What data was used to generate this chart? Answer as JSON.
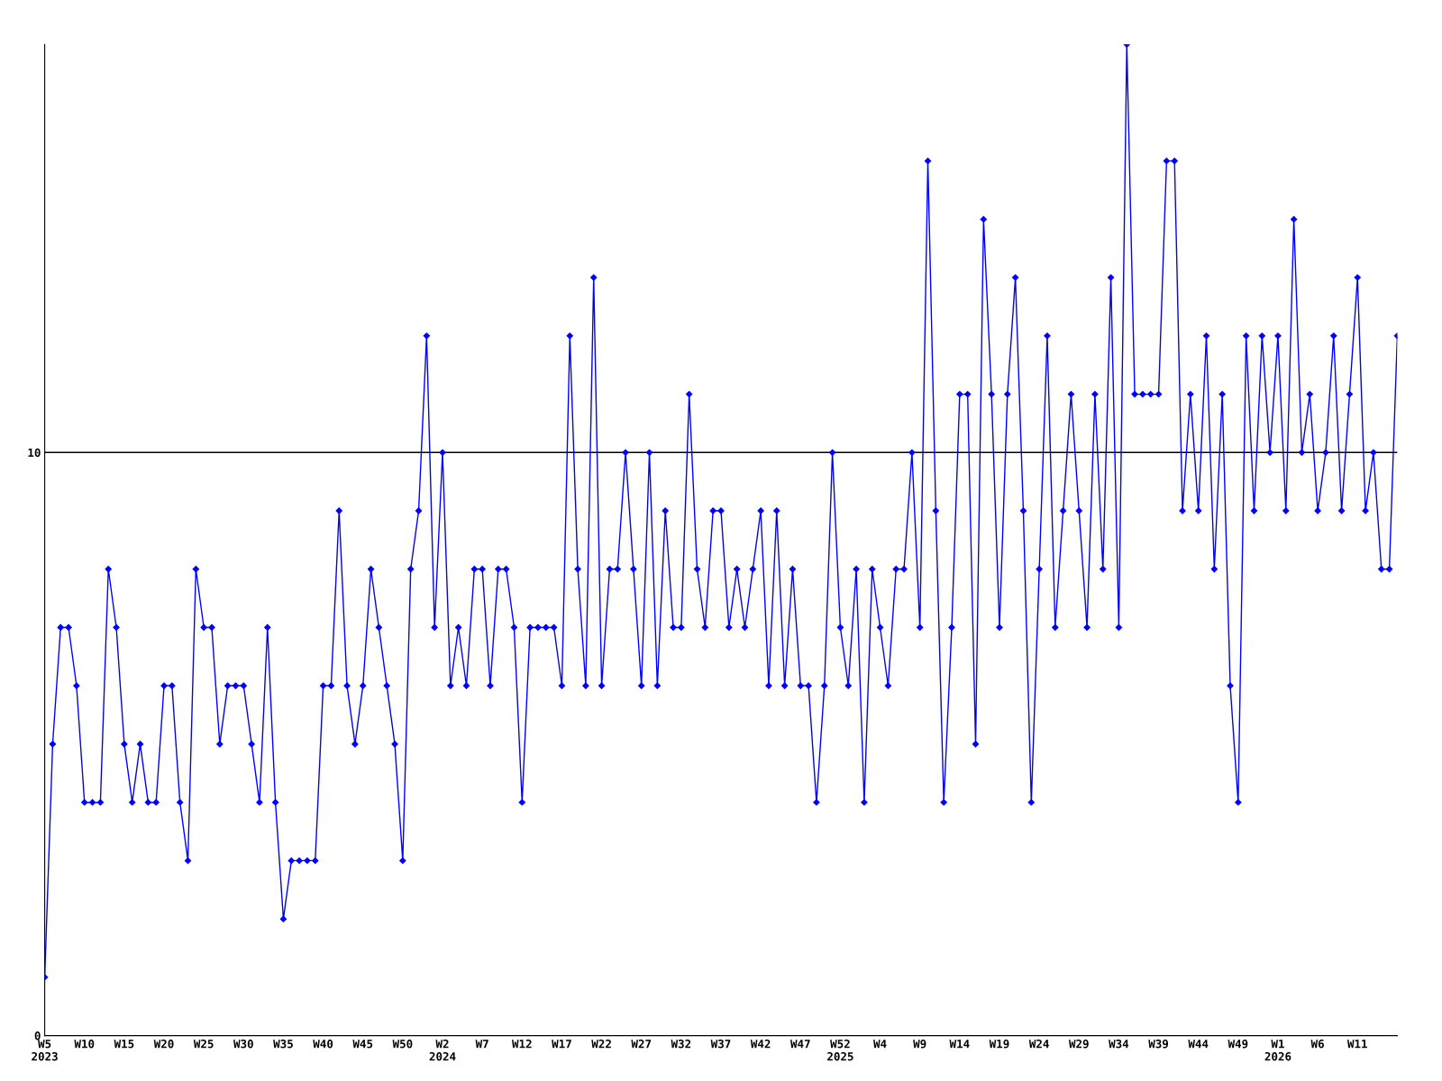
{
  "chart_data": {
    "type": "line",
    "categories": [
      "W5\n2023",
      null,
      null,
      null,
      null,
      "W10",
      null,
      null,
      null,
      null,
      "W15",
      null,
      null,
      null,
      null,
      "W20",
      null,
      null,
      null,
      null,
      "W25",
      null,
      null,
      null,
      null,
      "W30",
      null,
      null,
      null,
      null,
      "W35",
      null,
      null,
      null,
      null,
      "W40",
      null,
      null,
      null,
      null,
      "W45",
      null,
      null,
      null,
      null,
      "W50",
      null,
      null,
      null,
      null,
      "W2\n2024",
      null,
      null,
      null,
      null,
      "W7",
      null,
      null,
      null,
      null,
      "W12",
      null,
      null,
      null,
      null,
      "W17",
      null,
      null,
      null,
      null,
      "W22",
      null,
      null,
      null,
      null,
      "W27",
      null,
      null,
      null,
      null,
      "W32",
      null,
      null,
      null,
      null,
      "W37",
      null,
      null,
      null,
      null,
      "W42",
      null,
      null,
      null,
      null,
      "W47",
      null,
      null,
      null,
      null,
      "W52\n2025",
      null,
      null,
      null,
      null,
      "W4",
      null,
      null,
      null,
      null,
      "W9",
      null,
      null,
      null,
      null,
      "W14",
      null,
      null,
      null,
      null,
      "W19",
      null,
      null,
      null,
      null,
      "W24",
      null,
      null,
      null,
      null,
      "W29",
      null,
      null,
      null,
      null,
      "W34",
      null,
      null,
      null,
      null,
      "W39",
      null,
      null,
      null,
      null,
      "W44",
      null,
      null,
      null,
      null,
      "W49",
      null,
      null,
      null,
      null,
      "W1\n2026",
      null,
      null,
      null,
      null,
      "W6",
      null,
      null,
      null,
      null,
      "W11",
      null,
      null,
      null,
      null,
      null
    ],
    "series": [
      {
        "color": "#0000ff",
        "values": [
          1,
          5,
          7,
          7,
          6,
          4,
          4,
          4,
          8,
          7,
          5,
          4,
          5,
          4,
          4,
          6,
          6,
          4,
          3,
          8,
          7,
          7,
          5,
          6,
          6,
          6,
          5,
          4,
          7,
          4,
          2,
          3,
          3,
          3,
          3,
          6,
          6,
          9,
          6,
          5,
          6,
          8,
          7,
          6,
          5,
          3,
          8,
          9,
          12,
          7,
          10,
          6,
          7,
          6,
          8,
          8,
          6,
          8,
          8,
          7,
          4,
          7,
          7,
          7,
          7,
          6,
          12,
          8,
          6,
          13,
          6,
          8,
          8,
          10,
          8,
          6,
          10,
          6,
          9,
          7,
          7,
          11,
          8,
          7,
          9,
          9,
          7,
          8,
          7,
          8,
          9,
          6,
          9,
          6,
          8,
          6,
          6,
          4,
          6,
          10,
          7,
          6,
          8,
          4,
          8,
          7,
          6,
          8,
          8,
          10,
          7,
          15,
          9,
          4,
          7,
          11,
          11,
          5,
          14,
          11,
          7,
          11,
          13,
          9,
          4,
          8,
          12,
          7,
          9,
          11,
          9,
          7,
          11,
          8,
          13,
          7,
          17,
          11,
          11,
          11,
          11,
          15,
          15,
          9,
          11,
          9,
          12,
          8,
          11,
          6,
          4,
          12,
          9,
          12,
          10,
          12,
          9,
          14,
          10,
          11,
          9,
          10,
          12,
          9,
          11,
          13,
          9,
          10,
          8,
          8,
          12
        ]
      }
    ],
    "ylim": [
      0,
      17
    ],
    "yticks": [
      0,
      10
    ],
    "grid": "y",
    "marker": "diamond",
    "line_style": "solid"
  }
}
